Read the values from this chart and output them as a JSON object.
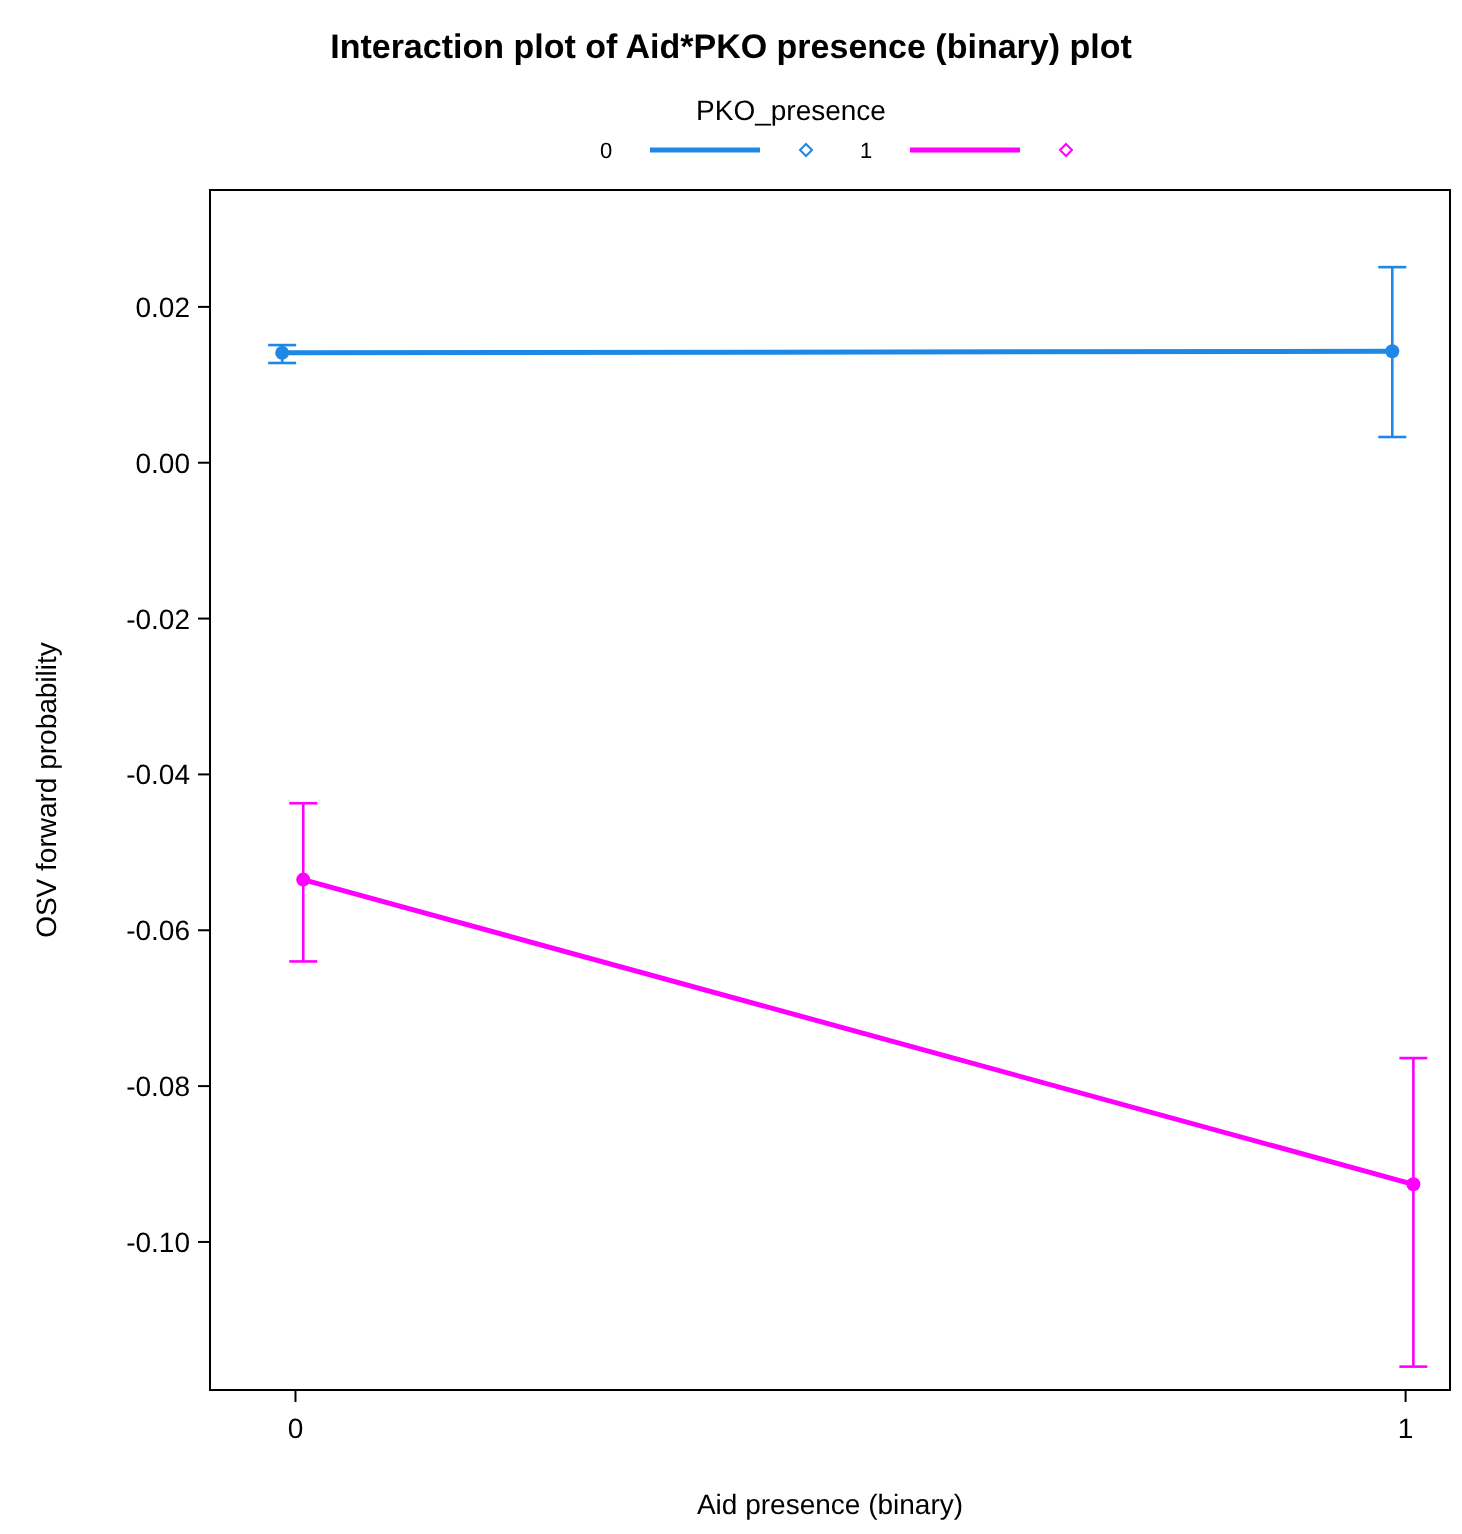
{
  "chart_data": {
    "type": "line",
    "title": "Interaction plot of Aid*PKO presence (binary) plot",
    "xlabel": "Aid presence (binary)",
    "ylabel": "OSV forward probability",
    "legend_title": "PKO_presence",
    "legend": "top",
    "marker": "circle",
    "line_style": "solid",
    "grid": false,
    "xlim": [
      -0.077,
      1.04
    ],
    "xticks": [
      0,
      1
    ],
    "ylim": [
      -0.119,
      0.035
    ],
    "yticks": [
      {
        "value": 0.02,
        "label": "0.02"
      },
      {
        "value": 0,
        "label": "0.00"
      },
      {
        "value": -0.02,
        "label": "-0.02"
      },
      {
        "value": -0.04,
        "label": "-0.04"
      },
      {
        "value": -0.06,
        "label": "-0.06"
      },
      {
        "value": -0.08,
        "label": "-0.08"
      },
      {
        "value": -0.1,
        "label": "-0.10"
      }
    ],
    "series": [
      {
        "name": "0",
        "color": "#1e88e5",
        "x": [
          -0.012,
          0.988
        ],
        "values": [
          0.0141,
          0.0143
        ],
        "errors": [
          [
            0.0128,
            0.0151
          ],
          [
            0.0033,
            0.0251
          ]
        ]
      },
      {
        "name": "1",
        "color": "#ff00ff",
        "x": [
          0.007,
          1.007
        ],
        "values": [
          -0.0535,
          -0.0926
        ],
        "errors": [
          [
            -0.064,
            -0.0437
          ],
          [
            -0.116,
            -0.0764
          ]
        ]
      }
    ]
  }
}
